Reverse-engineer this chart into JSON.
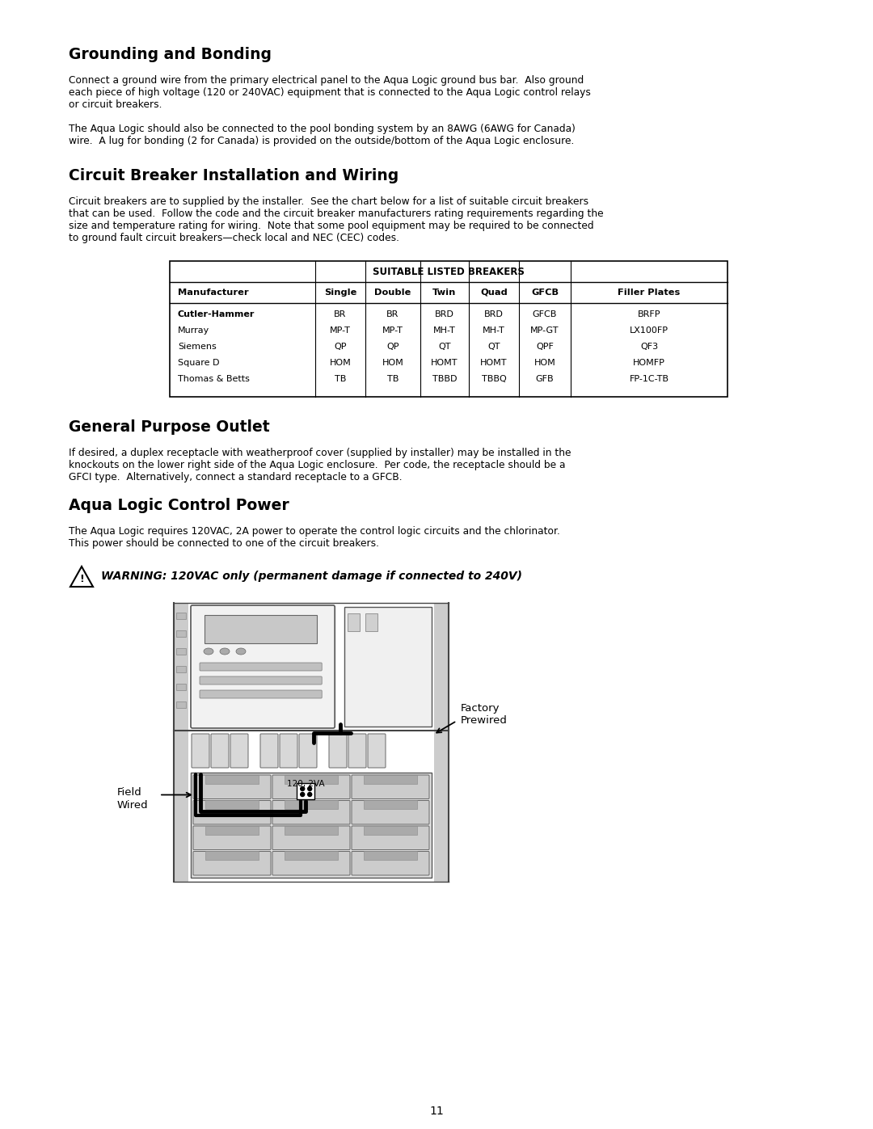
{
  "bg_color": "#ffffff",
  "page_number": "11",
  "section1_title": "Grounding and Bonding",
  "section1_para1": "Connect a ground wire from the primary electrical panel to the Aqua Logic ground bus bar.  Also ground\neach piece of high voltage (120 or 240VAC) equipment that is connected to the Aqua Logic control relays\nor circuit breakers.",
  "section1_para2": "The Aqua Logic should also be connected to the pool bonding system by an 8AWG (6AWG for Canada)\nwire.  A lug for bonding (2 for Canada) is provided on the outside/bottom of the Aqua Logic enclosure.",
  "section2_title": "Circuit Breaker Installation and Wiring",
  "section2_para1": "Circuit breakers are to supplied by the installer.  See the chart below for a list of suitable circuit breakers\nthat can be used.  Follow the code and the circuit breaker manufacturers rating requirements regarding the\nsize and temperature rating for wiring.  Note that some pool equipment may be required to be connected\nto ground fault circuit breakers—check local and NEC (CEC) codes.",
  "table_title": "SUITABLE LISTED BREAKERS",
  "table_headers": [
    "Manufacturer",
    "Single",
    "Double",
    "Twin",
    "Quad",
    "GFCB",
    "Filler Plates"
  ],
  "table_mfr_col": "Cutler-Hammer\nMurray\nSiemens\nSquare D\nThomas & Betts",
  "table_single_col": "BR\nMP-T\nQP\nHOM\nTB",
  "table_double_col": "BR\nMP-T\nQP\nHOM\nTB",
  "table_twin_col": "BRD\nMH-T\nQT\nHOMT\nTBBD",
  "table_quad_col": "BRD\nMH-T\nQT\nHOMT\nTBBQ",
  "table_gfcb_col": "GFCB\nMP-GT\nQPF\nHOM\nGFB",
  "table_filler_col": "BRFP\nLX100FP\nQF3\nHOMFP\nFP-1C-TB",
  "section3_title": "General Purpose Outlet",
  "section3_para1": "If desired, a duplex receptacle with weatherproof cover (supplied by installer) may be installed in the\nknockouts on the lower right side of the Aqua Logic enclosure.  Per code, the receptacle should be a\nGFCI type.  Alternatively, connect a standard receptacle to a GFCB.",
  "section4_title": "Aqua Logic Control Power",
  "section4_para1": "The Aqua Logic requires 120VAC, 2A power to operate the control logic circuits and the chlorinator.\nThis power should be connected to one of the circuit breakers.",
  "warning_text": "WARNING: 120VAC only (permanent damage if connected to 240V)",
  "label_factory": "Factory\nPrewired",
  "label_field": "Field\nWired",
  "label_120_2va": "120, 2VA"
}
